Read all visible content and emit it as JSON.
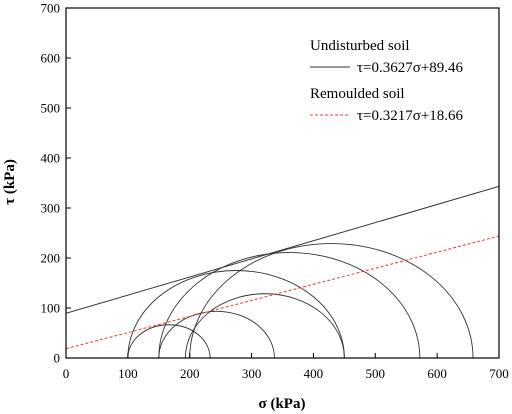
{
  "chart_data": {
    "type": "line",
    "xlabel": "σ (kPa)",
    "ylabel": "τ (kPa)",
    "xlim": [
      0,
      700
    ],
    "ylim": [
      0,
      700
    ],
    "xticks": [
      0,
      100,
      200,
      300,
      400,
      500,
      600,
      700
    ],
    "yticks": [
      0,
      100,
      200,
      300,
      400,
      500,
      600,
      700
    ],
    "grid": false,
    "legend_position": "top-right",
    "series": [
      {
        "name": "Undisturbed soil",
        "label": "τ=0.3627σ+89.46",
        "style": "solid",
        "color": "#333333",
        "slope": 0.3627,
        "intercept": 89.46,
        "x": [
          0,
          700
        ],
        "y": [
          89.46,
          343.35
        ]
      },
      {
        "name": "Remoulded soil",
        "label": "τ=0.3217σ+18.66",
        "style": "dashed",
        "color": "#e8393a",
        "slope": 0.3217,
        "intercept": 18.66,
        "x": [
          0,
          700
        ],
        "y": [
          18.66,
          243.85
        ]
      }
    ],
    "mohr_circles": [
      {
        "sigma3": 100,
        "sigma1": 233
      },
      {
        "sigma3": 150,
        "sigma1": 337
      },
      {
        "sigma3": 193,
        "sigma1": 450
      },
      {
        "sigma3": 100,
        "sigma1": 450
      },
      {
        "sigma3": 150,
        "sigma1": 572
      },
      {
        "sigma3": 200,
        "sigma1": 658
      }
    ]
  },
  "colors": {
    "axis": "#000000",
    "undisturbed": "#333333",
    "remoulded": "#e8393a",
    "circle": "#333333"
  }
}
